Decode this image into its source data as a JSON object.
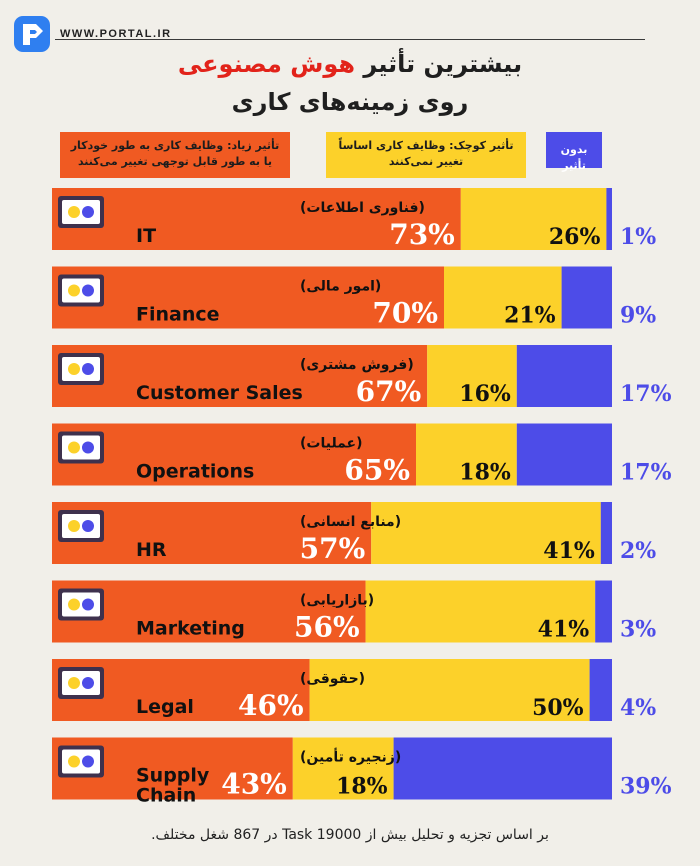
{
  "brand": {
    "name": "WWW.PORTAL.IR"
  },
  "title": {
    "line1_prefix": "بیشترین تأثیر",
    "line1_highlight": "هوش مصنوعی",
    "line2": "روی زمینه‌های کاری"
  },
  "legend": {
    "high": "تأثیر زیاد: وظایف کاری به طور خودکار یا به طور قابل توجهی تغییر می‌کنند",
    "low": "تأثیر کوچک: وظایف کاری اساساً تغییر نمی‌کنند",
    "none": "بدون تأثیر"
  },
  "colors": {
    "high": "#f05a22",
    "low": "#fcd12a",
    "none": "#4d4ce8",
    "accent": "#e2231a",
    "background": "#f1efe9"
  },
  "chart_data": {
    "type": "bar",
    "stacked": true,
    "orientation": "horizontal",
    "categories": [
      {
        "en": "IT",
        "fa": "(فناوری اطلاعات)"
      },
      {
        "en": "Finance",
        "fa": "(امور مالی)"
      },
      {
        "en": "Customer Sales",
        "fa": "(فروش مشتری)"
      },
      {
        "en": "Operations",
        "fa": "(عملیات)"
      },
      {
        "en": "HR",
        "fa": "(منابع انسانی)"
      },
      {
        "en": "Marketing",
        "fa": "(بازاریابی)"
      },
      {
        "en": "Legal",
        "fa": "(حقوقی)"
      },
      {
        "en": "Supply Chain",
        "fa": "(زنجیره تأمین)"
      }
    ],
    "series": [
      {
        "name": "تأثیر زیاد",
        "values": [
          73,
          70,
          67,
          65,
          57,
          56,
          46,
          43
        ]
      },
      {
        "name": "تأثیر کوچک",
        "values": [
          26,
          21,
          16,
          18,
          41,
          41,
          50,
          18
        ]
      },
      {
        "name": "بدون تأثیر",
        "values": [
          1,
          9,
          17,
          17,
          2,
          3,
          4,
          39
        ]
      }
    ],
    "labels": {
      "high": [
        "73%",
        "70%",
        "67%",
        "65%",
        "57%",
        "56%",
        "46%",
        "43%"
      ],
      "low": [
        "26%",
        "21%",
        "16%",
        "18%",
        "41%",
        "41%",
        "50%",
        "18%"
      ],
      "none": [
        "1%",
        "9%",
        "17%",
        "17%",
        "2%",
        "3%",
        "4%",
        "39%"
      ]
    },
    "xlim": [
      0,
      100
    ]
  },
  "footer": "بر اساس تجزیه و تحلیل بیش از 19000 Task در 867 شغل مختلف."
}
